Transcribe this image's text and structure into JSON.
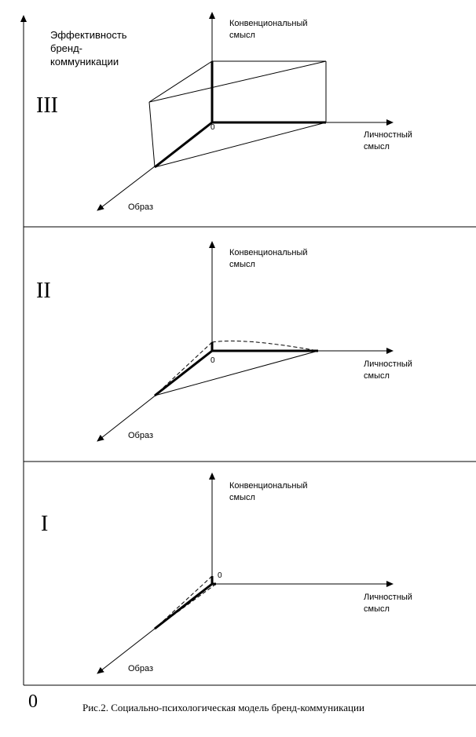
{
  "y_axis_label": [
    "Эффективность",
    "бренд-",
    "коммуникации"
  ],
  "origin_label": "0",
  "caption": "Рис.2. Социально-психологическая модель бренд-коммуникации",
  "panels": [
    {
      "numeral": "III",
      "zero": "0",
      "conventional": [
        "Конвенциональный",
        "смысл"
      ],
      "personal": [
        "Личностный",
        "смысл"
      ],
      "image": "Образ"
    },
    {
      "numeral": "II",
      "zero": "0",
      "conventional": [
        "Конвенциональный",
        "смысл"
      ],
      "personal": [
        "Личностный",
        "смысл"
      ],
      "image": "Образ"
    },
    {
      "numeral": "I",
      "zero": "0",
      "conventional": [
        "Конвенциональный",
        "смысл"
      ],
      "personal": [
        "Личностный",
        "смысл"
      ],
      "image": "Образ"
    }
  ]
}
